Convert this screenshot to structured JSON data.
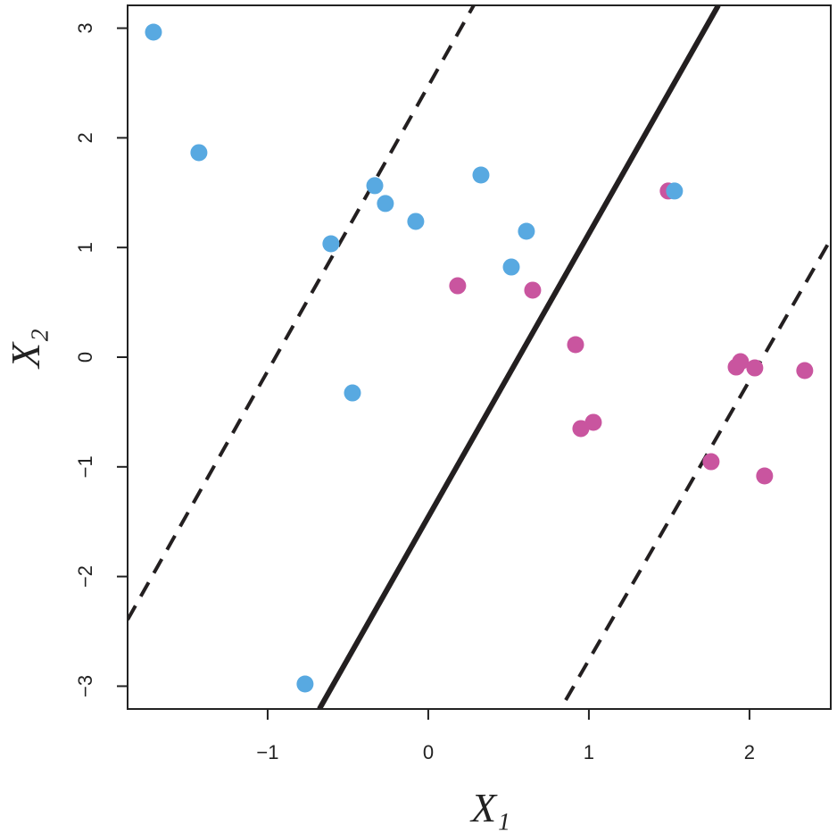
{
  "chart_data": {
    "type": "scatter",
    "xlabel": "X₁",
    "ylabel": "X₂",
    "xlim": [
      -1.872,
      2.506
    ],
    "ylim": [
      -3.208,
      3.208
    ],
    "xticks": [
      {
        "value": -1,
        "label": "−1"
      },
      0,
      1,
      2
    ],
    "yticks": [
      {
        "value": -3,
        "label": "−3"
      },
      {
        "value": -2,
        "label": "−2"
      },
      {
        "value": -1,
        "label": "−1"
      },
      0,
      1,
      2,
      3
    ],
    "series": [
      {
        "color": "#58a9e1",
        "x": [
          -1.711,
          -1.428,
          -0.333,
          -0.267,
          -0.078,
          0.328,
          0.611,
          -0.606,
          0.517,
          -0.472,
          -0.767
        ],
        "y": [
          2.964,
          1.865,
          1.564,
          1.401,
          1.238,
          1.661,
          1.148,
          1.034,
          0.822,
          -0.326,
          -2.98
        ]
      },
      {
        "color": "#c9559f",
        "x": [
          1.494,
          0.183,
          0.65,
          0.917,
          0.95,
          1.028,
          1.917,
          1.944,
          2.033,
          2.344,
          1.761,
          2.094
        ],
        "y": [
          1.515,
          0.651,
          0.611,
          0.114,
          -0.651,
          -0.594,
          -0.09,
          -0.041,
          -0.098,
          -0.122,
          -0.953,
          -1.083
        ]
      },
      {
        "color": "#58a9e1",
        "x": [
          1.533
        ],
        "y": [
          1.515
        ]
      }
    ],
    "lines": [
      {
        "style": "solid",
        "color": "#231f20",
        "x": [
          -0.678,
          1.806
        ],
        "y": [
          -3.208,
          3.208
        ]
      },
      {
        "style": "dashed",
        "color": "#231f20",
        "x": [
          -1.872,
          0.283
        ],
        "y": [
          -2.394,
          3.208
        ]
      },
      {
        "style": "dashed",
        "color": "#231f20",
        "x": [
          0.856,
          2.506
        ],
        "y": [
          -3.127,
          1.075
        ]
      }
    ]
  }
}
